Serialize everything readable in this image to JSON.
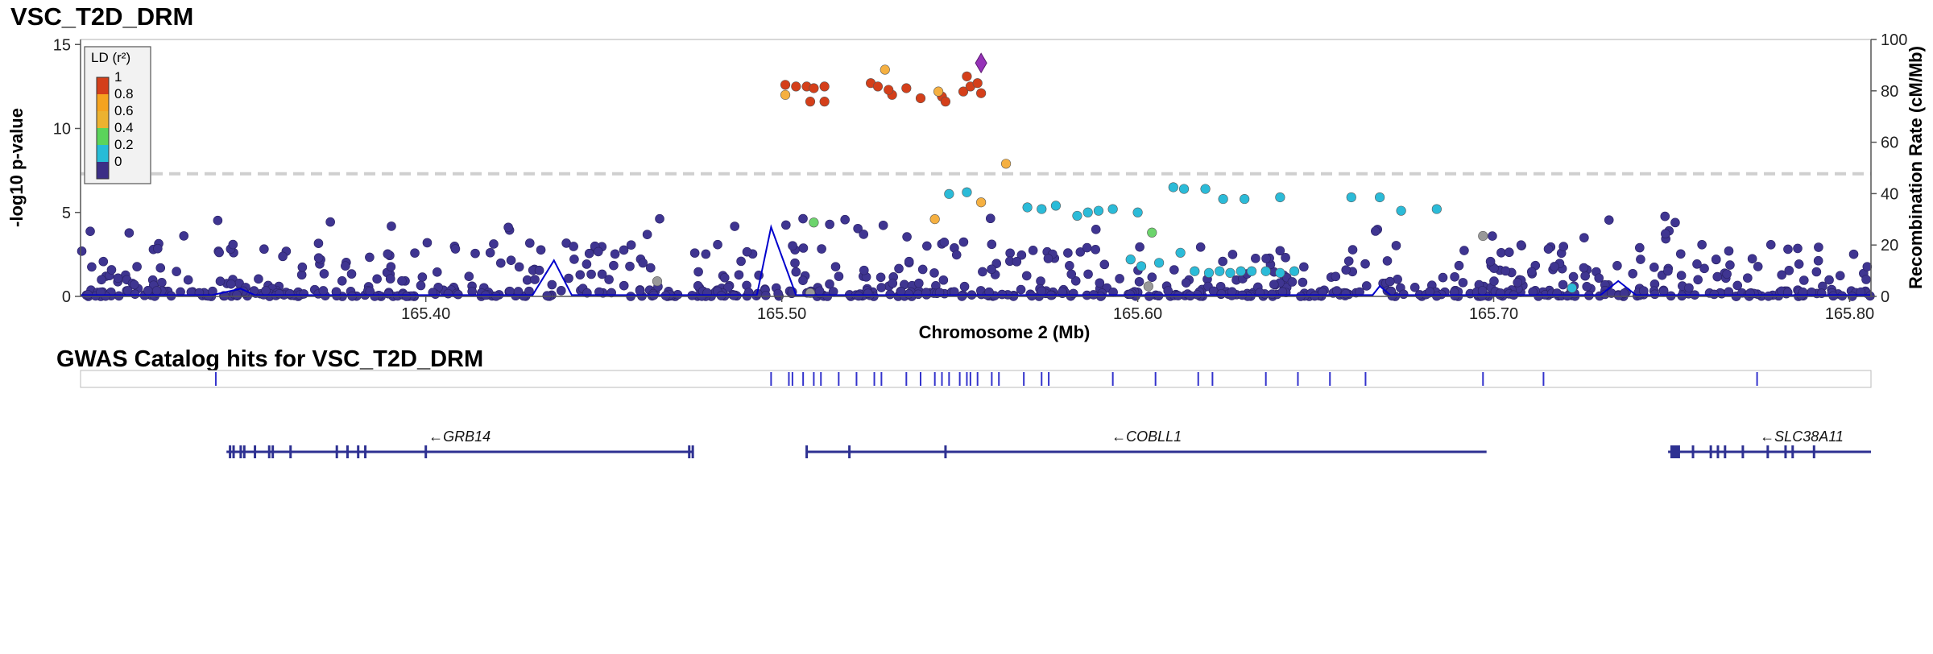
{
  "chart_data": {
    "type": "scatter",
    "title": "VSC_T2D_DRM",
    "xlabel": "Chromosome 2 (Mb)",
    "ylabel": "-log10 p-value",
    "y2label": "Recombination Rate (cM/Mb)",
    "xlim": [
      165.303,
      165.806
    ],
    "ylim": [
      0,
      15.3
    ],
    "y2lim": [
      0,
      100
    ],
    "xticks": [
      "165.40",
      "165.50",
      "165.60",
      "165.70",
      "165.80"
    ],
    "xtick_values": [
      165.4,
      165.5,
      165.6,
      165.7,
      165.8
    ],
    "yticks": [
      "0",
      "5",
      "10",
      "15"
    ],
    "ytick_values": [
      0,
      5,
      10,
      15
    ],
    "y2ticks": [
      "0",
      "20",
      "40",
      "60",
      "80",
      "100"
    ],
    "y2tick_values": [
      0,
      20,
      40,
      60,
      80,
      100
    ],
    "significance_line": 7.3,
    "grid": false,
    "legend": {
      "title": "LD (r²)",
      "placement": "top-left",
      "labels": [
        "1",
        "0.8",
        "0.6",
        "0.4",
        "0.2",
        "0"
      ],
      "colors": [
        "#d43f1a",
        "#f5a31f",
        "#ecb230",
        "#5bd45b",
        "#26bcd7",
        "#3b2e86"
      ]
    },
    "colors": {
      "ld_1": "#d43f1a",
      "ld_0.8": "#f5b041",
      "ld_0.6": "#f5b041",
      "ld_0.4": "#6cd46c",
      "ld_0.2": "#2bbbd8",
      "ld_0": "#3f3591",
      "no_ld": "#999999",
      "lead": "#9632b8",
      "recomb": "#0000cc",
      "gene": "#2e3192"
    },
    "lead_snp": {
      "x": 165.556,
      "y": 13.9
    },
    "series": [
      {
        "ld": "1",
        "points": [
          [
            165.501,
            12.6
          ],
          [
            165.504,
            12.5
          ],
          [
            165.507,
            12.5
          ],
          [
            165.509,
            12.4
          ],
          [
            165.512,
            12.5
          ],
          [
            165.508,
            11.6
          ],
          [
            165.512,
            11.6
          ],
          [
            165.525,
            12.7
          ],
          [
            165.527,
            12.5
          ],
          [
            165.531,
            12.0
          ],
          [
            165.53,
            12.3
          ],
          [
            165.535,
            12.4
          ],
          [
            165.539,
            11.8
          ],
          [
            165.545,
            11.9
          ],
          [
            165.546,
            11.6
          ],
          [
            165.551,
            12.2
          ],
          [
            165.552,
            13.1
          ],
          [
            165.553,
            12.5
          ],
          [
            165.555,
            12.7
          ],
          [
            165.556,
            12.1
          ]
        ]
      },
      {
        "ld": "0.8",
        "points": [
          [
            165.501,
            12.0
          ],
          [
            165.529,
            13.5
          ],
          [
            165.544,
            12.2
          ],
          [
            165.563,
            7.9
          ],
          [
            165.556,
            5.6
          ],
          [
            165.543,
            4.6
          ]
        ]
      },
      {
        "ld": "0.4",
        "points": [
          [
            165.509,
            4.4
          ],
          [
            165.604,
            3.8
          ]
        ]
      },
      {
        "ld": "0.2",
        "points": [
          [
            165.547,
            6.1
          ],
          [
            165.552,
            6.2
          ],
          [
            165.569,
            5.3
          ],
          [
            165.573,
            5.2
          ],
          [
            165.577,
            5.4
          ],
          [
            165.583,
            4.8
          ],
          [
            165.586,
            5.0
          ],
          [
            165.589,
            5.1
          ],
          [
            165.593,
            5.2
          ],
          [
            165.6,
            5.0
          ],
          [
            165.61,
            6.5
          ],
          [
            165.613,
            6.4
          ],
          [
            165.619,
            6.4
          ],
          [
            165.624,
            5.8
          ],
          [
            165.63,
            5.8
          ],
          [
            165.64,
            5.9
          ],
          [
            165.66,
            5.9
          ],
          [
            165.668,
            5.9
          ],
          [
            165.674,
            5.1
          ],
          [
            165.684,
            5.2
          ],
          [
            165.598,
            2.2
          ],
          [
            165.601,
            1.8
          ],
          [
            165.606,
            2.0
          ],
          [
            165.612,
            2.6
          ],
          [
            165.616,
            1.5
          ],
          [
            165.62,
            1.4
          ],
          [
            165.623,
            1.5
          ],
          [
            165.626,
            1.4
          ],
          [
            165.629,
            1.5
          ],
          [
            165.632,
            1.5
          ],
          [
            165.636,
            1.5
          ],
          [
            165.64,
            1.4
          ],
          [
            165.644,
            1.5
          ],
          [
            165.722,
            0.5
          ]
        ]
      },
      {
        "ld": "none",
        "points": [
          [
            165.465,
            0.9
          ],
          [
            165.508,
            0.2
          ],
          [
            165.603,
            0.6
          ],
          [
            165.697,
            3.6
          ]
        ]
      },
      {
        "ld": "0",
        "n": 600,
        "range": [
          0,
          4.8
        ],
        "note": "background variants across the region"
      }
    ],
    "recombination": [
      [
        165.303,
        0.5
      ],
      [
        165.34,
        0.5
      ],
      [
        165.348,
        3.0
      ],
      [
        165.352,
        0.5
      ],
      [
        165.43,
        0.5
      ],
      [
        165.436,
        14.0
      ],
      [
        165.441,
        0.5
      ],
      [
        165.493,
        0.5
      ],
      [
        165.497,
        27.0
      ],
      [
        165.504,
        0.5
      ],
      [
        165.666,
        0.5
      ],
      [
        165.668,
        4.0
      ],
      [
        165.671,
        0.5
      ],
      [
        165.73,
        0.5
      ],
      [
        165.735,
        6.0
      ],
      [
        165.74,
        0.5
      ],
      [
        165.806,
        0.5
      ]
    ]
  },
  "gwas_track": {
    "title": "GWAS Catalog hits for VSC_T2D_DRM",
    "hits": [
      165.341,
      165.497,
      165.502,
      165.503,
      165.506,
      165.509,
      165.511,
      165.516,
      165.521,
      165.526,
      165.528,
      165.535,
      165.539,
      165.543,
      165.545,
      165.547,
      165.55,
      165.552,
      165.553,
      165.555,
      165.559,
      165.561,
      165.568,
      165.573,
      165.575,
      165.593,
      165.605,
      165.617,
      165.621,
      165.636,
      165.645,
      165.654,
      165.664,
      165.697,
      165.714,
      165.774
    ]
  },
  "genes": [
    {
      "name": "GRB14",
      "label": "←GRB14",
      "start": 165.344,
      "end": 165.475,
      "exons": [
        165.345,
        165.346,
        165.348,
        165.349,
        165.352,
        165.356,
        165.357,
        165.362,
        165.375,
        165.378,
        165.381,
        165.383,
        165.4,
        165.474,
        165.475
      ]
    },
    {
      "name": "COBLL1",
      "label": "←COBLL1",
      "start": 165.507,
      "end": 165.698,
      "exons": [
        165.507,
        165.519,
        165.546
      ]
    },
    {
      "name": "SLC38A11",
      "label": "←SLC38A11",
      "start": 165.749,
      "end": 165.806,
      "exons": [
        165.751,
        165.756,
        165.761,
        165.763,
        165.765,
        165.77,
        165.777,
        165.782,
        165.784,
        165.79
      ]
    }
  ]
}
